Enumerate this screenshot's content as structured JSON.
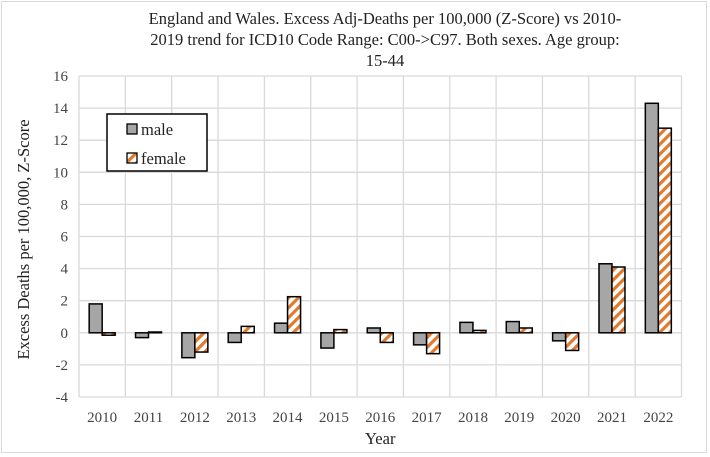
{
  "chart_data": {
    "type": "bar",
    "title": "England and Wales. Excess Adj-Deaths per 100,000 (Z-Score) vs 2010-2019 trend for ICD10 Code Range: C00->C97. Both sexes. Age group: 15-44",
    "title_lines": [
      "England and Wales. Excess Adj-Deaths per 100,000 (Z-Score) vs 2010-",
      "2019 trend for ICD10 Code Range: C00->C97. Both sexes. Age group:",
      "15-44"
    ],
    "xlabel": "Year",
    "ylabel": "Excess Deaths per 100,000, Z-Score",
    "ylim": [
      -4,
      16
    ],
    "yticks": [
      -4,
      -2,
      0,
      2,
      4,
      6,
      8,
      10,
      12,
      14,
      16
    ],
    "grid": true,
    "legend_position": "top-left",
    "categories": [
      "2010",
      "2011",
      "2012",
      "2013",
      "2014",
      "2015",
      "2016",
      "2017",
      "2018",
      "2019",
      "2020",
      "2021",
      "2022"
    ],
    "series": [
      {
        "name": "male",
        "fill": "#a6a6a6",
        "pattern": "solid",
        "values": [
          1.8,
          -0.3,
          -1.55,
          -0.6,
          0.6,
          -0.95,
          0.3,
          -0.75,
          0.65,
          0.7,
          -0.5,
          4.3,
          14.3
        ]
      },
      {
        "name": "female",
        "fill": "#e07b2e",
        "pattern": "diagonal-stripes",
        "values": [
          -0.15,
          0.05,
          -1.2,
          0.4,
          2.25,
          0.2,
          -0.6,
          -1.3,
          0.15,
          0.3,
          -1.1,
          4.1,
          12.75
        ]
      }
    ]
  }
}
